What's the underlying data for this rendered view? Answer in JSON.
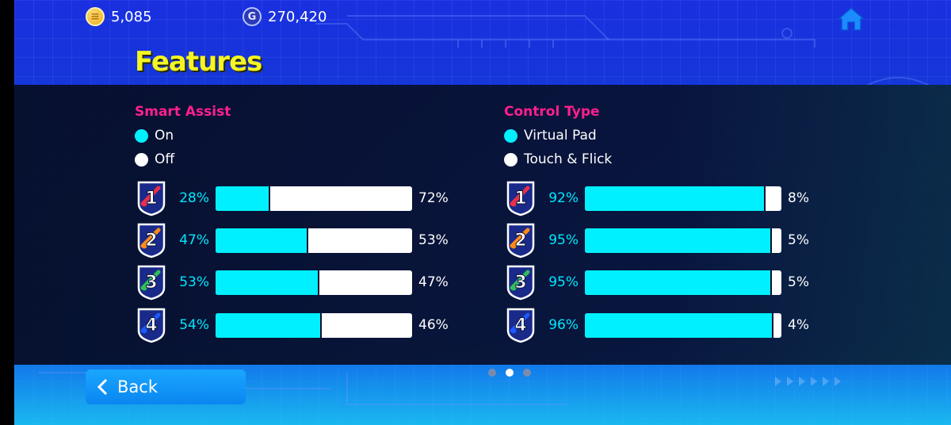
{
  "currencies": {
    "coins": {
      "icon": "efootball-coin-icon",
      "value": "5,085"
    },
    "gp": {
      "icon": "gp-icon",
      "value": "270,420"
    }
  },
  "home_icon": "home-icon",
  "title": "Features",
  "left_section": {
    "title": "Smart Assist",
    "legend": [
      {
        "label": "On",
        "color": "#00f0ff"
      },
      {
        "label": "Off",
        "color": "#ffffff"
      }
    ],
    "rows": [
      {
        "rank": "1",
        "left_pct": "28%",
        "fill": 28,
        "right_pct": "72%",
        "accent": "#e8304a"
      },
      {
        "rank": "2",
        "left_pct": "47%",
        "fill": 47,
        "right_pct": "53%",
        "accent": "#ff8a1a"
      },
      {
        "rank": "3",
        "left_pct": "53%",
        "fill": 53,
        "right_pct": "47%",
        "accent": "#2fbf5a"
      },
      {
        "rank": "4",
        "left_pct": "54%",
        "fill": 54,
        "right_pct": "46%",
        "accent": "#1a5bff"
      }
    ]
  },
  "right_section": {
    "title": "Control Type",
    "legend": [
      {
        "label": "Virtual Pad",
        "color": "#00f0ff"
      },
      {
        "label": "Touch & Flick",
        "color": "#ffffff"
      }
    ],
    "rows": [
      {
        "rank": "1",
        "left_pct": "92%",
        "fill": 92,
        "right_pct": "8%",
        "accent": "#e8304a"
      },
      {
        "rank": "2",
        "left_pct": "95%",
        "fill": 95,
        "right_pct": "5%",
        "accent": "#ff8a1a"
      },
      {
        "rank": "3",
        "left_pct": "95%",
        "fill": 95,
        "right_pct": "5%",
        "accent": "#2fbf5a"
      },
      {
        "rank": "4",
        "left_pct": "96%",
        "fill": 96,
        "right_pct": "4%",
        "accent": "#1a5bff"
      }
    ]
  },
  "back_label": "Back",
  "pagination": {
    "current": 2,
    "total": 3
  }
}
